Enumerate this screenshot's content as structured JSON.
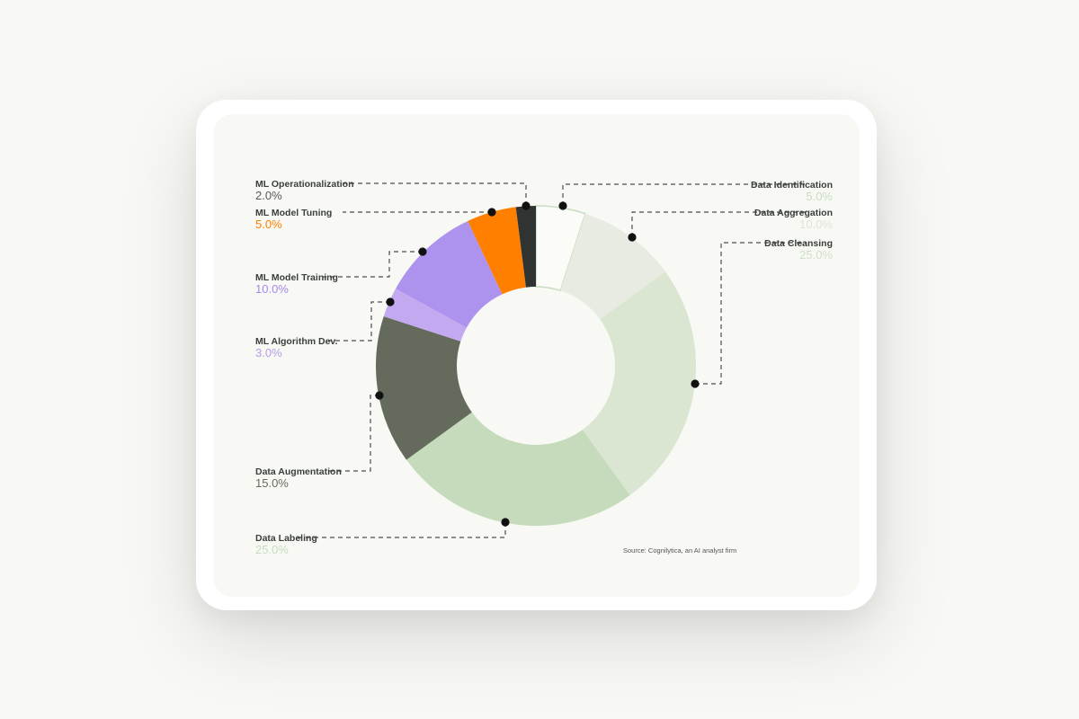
{
  "chart_data": {
    "type": "pie",
    "donut": true,
    "title": "",
    "source": "Source: Cognilytica, an AI analyst firm",
    "slices": [
      {
        "label": "Data Identification",
        "pct_label": "5.0%",
        "value": 5.0,
        "color": "#fbfcf8",
        "stroke": "#c8dcc0",
        "label_color": "#c7dcc0"
      },
      {
        "label": "Data Aggregation",
        "pct_label": "10.0%",
        "value": 10.0,
        "color": "#e8ebe1",
        "label_color": "#dfe4d6"
      },
      {
        "label": "Data Cleansing",
        "pct_label": "25.0%",
        "value": 25.0,
        "color": "#dae6d2",
        "label_color": "#cfdfc6"
      },
      {
        "label": "Data Labeling",
        "pct_label": "25.0%",
        "value": 25.0,
        "color": "#c6dbbb",
        "label_color": "#c6dbbb"
      },
      {
        "label": "Data Augmentation",
        "pct_label": "15.0%",
        "value": 15.0,
        "color": "#656b5c",
        "label_color": "#656b5c"
      },
      {
        "label": "ML Algorithm Dev.",
        "pct_label": "3.0%",
        "value": 3.0,
        "color": "#c3aaf0",
        "label_color": "#b79be8"
      },
      {
        "label": "ML Model Training",
        "pct_label": "10.0%",
        "value": 10.0,
        "color": "#ad92ee",
        "label_color": "#a888ea"
      },
      {
        "label": "ML Model Tuning",
        "pct_label": "5.0%",
        "value": 5.0,
        "color": "#ff7f00",
        "label_color": "#ff7f00"
      },
      {
        "label": "ML Operationalization",
        "pct_label": "2.0%",
        "value": 2.0,
        "color": "#2f3432",
        "label_color": "#555a55"
      }
    ]
  }
}
